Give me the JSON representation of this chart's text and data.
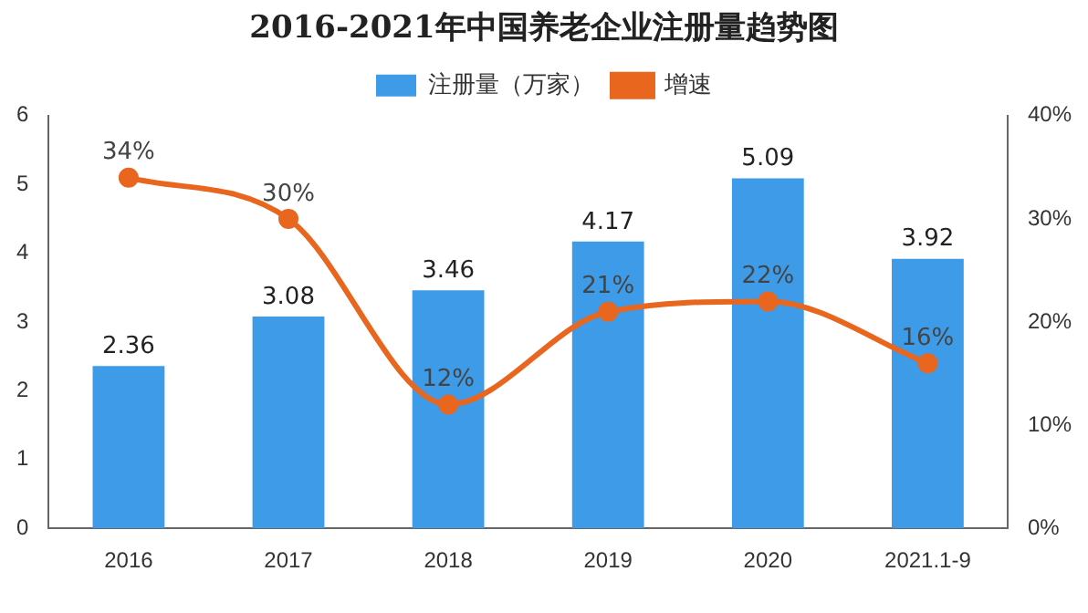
{
  "chart_data": {
    "type": "bar",
    "title": "2016-2021年中国养老企业注册量趋势图",
    "categories": [
      "2016",
      "2017",
      "2018",
      "2019",
      "2020",
      "2021.1-9"
    ],
    "series": [
      {
        "name": "注册量（万家）",
        "color": "#3e9be8",
        "values": [
          2.36,
          3.08,
          3.46,
          4.17,
          5.09,
          3.92
        ],
        "value_labels": [
          "2.36",
          "3.08",
          "3.46",
          "4.17",
          "5.09",
          "3.92"
        ]
      },
      {
        "name": "增速",
        "type": "line",
        "axis": "y2",
        "color": "#e8661e",
        "values": [
          34,
          30,
          12,
          21,
          22,
          16
        ],
        "value_labels": [
          "34%",
          "30%",
          "12%",
          "21%",
          "22%",
          "16%"
        ]
      }
    ],
    "ylim": [
      0,
      6
    ],
    "yticks": [
      0,
      1,
      2,
      3,
      4,
      5,
      6
    ],
    "y2lim": [
      0,
      40
    ],
    "y2ticks": [
      {
        "value": 0,
        "label": "0%"
      },
      {
        "value": 10,
        "label": "10%"
      },
      {
        "value": 20,
        "label": "20%"
      },
      {
        "value": 30,
        "label": "30%"
      },
      {
        "value": 40,
        "label": "40%"
      }
    ],
    "legend": "top",
    "marker": "circle"
  }
}
